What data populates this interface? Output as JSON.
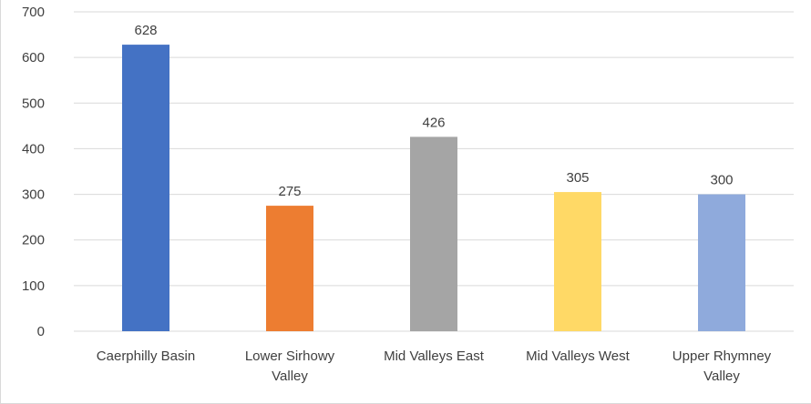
{
  "chart_data": {
    "type": "bar",
    "title": "",
    "xlabel": "",
    "ylabel": "",
    "categories": [
      [
        "Caerphilly Basin"
      ],
      [
        "Lower Sirhowy",
        "Valley"
      ],
      [
        "Mid Valleys East"
      ],
      [
        "Mid Valleys West"
      ],
      [
        "Upper Rhymney",
        "Valley"
      ]
    ],
    "values": [
      628,
      275,
      426,
      305,
      300
    ],
    "colors": [
      "#4472C4",
      "#ED7D31",
      "#A5A5A5",
      "#FFD966",
      "#8FAADC"
    ],
    "ylim": [
      0,
      700
    ],
    "yticks": [
      0,
      100,
      200,
      300,
      400,
      500,
      600,
      700
    ],
    "grid": true,
    "legend": "none",
    "data_labels": true
  }
}
